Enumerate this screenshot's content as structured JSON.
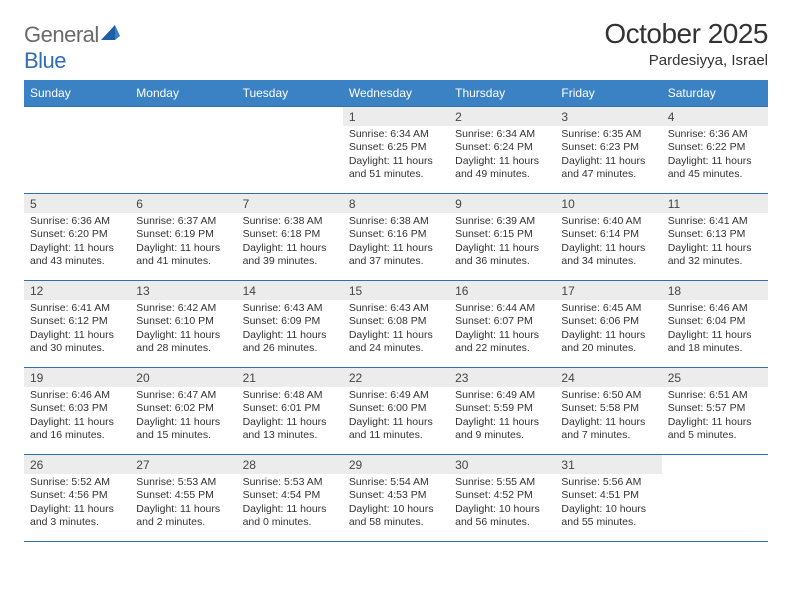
{
  "brand": {
    "word1": "General",
    "word2": "Blue"
  },
  "title": "October 2025",
  "subtitle": "Pardesiyya, Israel",
  "colors": {
    "header_bg": "#3b82c4",
    "accent_line": "#2f6fb2",
    "daynum_bg": "#ececec",
    "text": "#333333",
    "logo_grey": "#6a6a6a"
  },
  "dayNames": [
    "Sunday",
    "Monday",
    "Tuesday",
    "Wednesday",
    "Thursday",
    "Friday",
    "Saturday"
  ],
  "weeks": [
    [
      {
        "n": "",
        "sr": "",
        "ss": "",
        "dl": "",
        "empty": true
      },
      {
        "n": "",
        "sr": "",
        "ss": "",
        "dl": "",
        "empty": true
      },
      {
        "n": "",
        "sr": "",
        "ss": "",
        "dl": "",
        "empty": true
      },
      {
        "n": "1",
        "sr": "Sunrise: 6:34 AM",
        "ss": "Sunset: 6:25 PM",
        "dl": "Daylight: 11 hours and 51 minutes."
      },
      {
        "n": "2",
        "sr": "Sunrise: 6:34 AM",
        "ss": "Sunset: 6:24 PM",
        "dl": "Daylight: 11 hours and 49 minutes."
      },
      {
        "n": "3",
        "sr": "Sunrise: 6:35 AM",
        "ss": "Sunset: 6:23 PM",
        "dl": "Daylight: 11 hours and 47 minutes."
      },
      {
        "n": "4",
        "sr": "Sunrise: 6:36 AM",
        "ss": "Sunset: 6:22 PM",
        "dl": "Daylight: 11 hours and 45 minutes."
      }
    ],
    [
      {
        "n": "5",
        "sr": "Sunrise: 6:36 AM",
        "ss": "Sunset: 6:20 PM",
        "dl": "Daylight: 11 hours and 43 minutes."
      },
      {
        "n": "6",
        "sr": "Sunrise: 6:37 AM",
        "ss": "Sunset: 6:19 PM",
        "dl": "Daylight: 11 hours and 41 minutes."
      },
      {
        "n": "7",
        "sr": "Sunrise: 6:38 AM",
        "ss": "Sunset: 6:18 PM",
        "dl": "Daylight: 11 hours and 39 minutes."
      },
      {
        "n": "8",
        "sr": "Sunrise: 6:38 AM",
        "ss": "Sunset: 6:16 PM",
        "dl": "Daylight: 11 hours and 37 minutes."
      },
      {
        "n": "9",
        "sr": "Sunrise: 6:39 AM",
        "ss": "Sunset: 6:15 PM",
        "dl": "Daylight: 11 hours and 36 minutes."
      },
      {
        "n": "10",
        "sr": "Sunrise: 6:40 AM",
        "ss": "Sunset: 6:14 PM",
        "dl": "Daylight: 11 hours and 34 minutes."
      },
      {
        "n": "11",
        "sr": "Sunrise: 6:41 AM",
        "ss": "Sunset: 6:13 PM",
        "dl": "Daylight: 11 hours and 32 minutes."
      }
    ],
    [
      {
        "n": "12",
        "sr": "Sunrise: 6:41 AM",
        "ss": "Sunset: 6:12 PM",
        "dl": "Daylight: 11 hours and 30 minutes."
      },
      {
        "n": "13",
        "sr": "Sunrise: 6:42 AM",
        "ss": "Sunset: 6:10 PM",
        "dl": "Daylight: 11 hours and 28 minutes."
      },
      {
        "n": "14",
        "sr": "Sunrise: 6:43 AM",
        "ss": "Sunset: 6:09 PM",
        "dl": "Daylight: 11 hours and 26 minutes."
      },
      {
        "n": "15",
        "sr": "Sunrise: 6:43 AM",
        "ss": "Sunset: 6:08 PM",
        "dl": "Daylight: 11 hours and 24 minutes."
      },
      {
        "n": "16",
        "sr": "Sunrise: 6:44 AM",
        "ss": "Sunset: 6:07 PM",
        "dl": "Daylight: 11 hours and 22 minutes."
      },
      {
        "n": "17",
        "sr": "Sunrise: 6:45 AM",
        "ss": "Sunset: 6:06 PM",
        "dl": "Daylight: 11 hours and 20 minutes."
      },
      {
        "n": "18",
        "sr": "Sunrise: 6:46 AM",
        "ss": "Sunset: 6:04 PM",
        "dl": "Daylight: 11 hours and 18 minutes."
      }
    ],
    [
      {
        "n": "19",
        "sr": "Sunrise: 6:46 AM",
        "ss": "Sunset: 6:03 PM",
        "dl": "Daylight: 11 hours and 16 minutes."
      },
      {
        "n": "20",
        "sr": "Sunrise: 6:47 AM",
        "ss": "Sunset: 6:02 PM",
        "dl": "Daylight: 11 hours and 15 minutes."
      },
      {
        "n": "21",
        "sr": "Sunrise: 6:48 AM",
        "ss": "Sunset: 6:01 PM",
        "dl": "Daylight: 11 hours and 13 minutes."
      },
      {
        "n": "22",
        "sr": "Sunrise: 6:49 AM",
        "ss": "Sunset: 6:00 PM",
        "dl": "Daylight: 11 hours and 11 minutes."
      },
      {
        "n": "23",
        "sr": "Sunrise: 6:49 AM",
        "ss": "Sunset: 5:59 PM",
        "dl": "Daylight: 11 hours and 9 minutes."
      },
      {
        "n": "24",
        "sr": "Sunrise: 6:50 AM",
        "ss": "Sunset: 5:58 PM",
        "dl": "Daylight: 11 hours and 7 minutes."
      },
      {
        "n": "25",
        "sr": "Sunrise: 6:51 AM",
        "ss": "Sunset: 5:57 PM",
        "dl": "Daylight: 11 hours and 5 minutes."
      }
    ],
    [
      {
        "n": "26",
        "sr": "Sunrise: 5:52 AM",
        "ss": "Sunset: 4:56 PM",
        "dl": "Daylight: 11 hours and 3 minutes."
      },
      {
        "n": "27",
        "sr": "Sunrise: 5:53 AM",
        "ss": "Sunset: 4:55 PM",
        "dl": "Daylight: 11 hours and 2 minutes."
      },
      {
        "n": "28",
        "sr": "Sunrise: 5:53 AM",
        "ss": "Sunset: 4:54 PM",
        "dl": "Daylight: 11 hours and 0 minutes."
      },
      {
        "n": "29",
        "sr": "Sunrise: 5:54 AM",
        "ss": "Sunset: 4:53 PM",
        "dl": "Daylight: 10 hours and 58 minutes."
      },
      {
        "n": "30",
        "sr": "Sunrise: 5:55 AM",
        "ss": "Sunset: 4:52 PM",
        "dl": "Daylight: 10 hours and 56 minutes."
      },
      {
        "n": "31",
        "sr": "Sunrise: 5:56 AM",
        "ss": "Sunset: 4:51 PM",
        "dl": "Daylight: 10 hours and 55 minutes."
      },
      {
        "n": "",
        "sr": "",
        "ss": "",
        "dl": "",
        "empty": true
      }
    ]
  ]
}
